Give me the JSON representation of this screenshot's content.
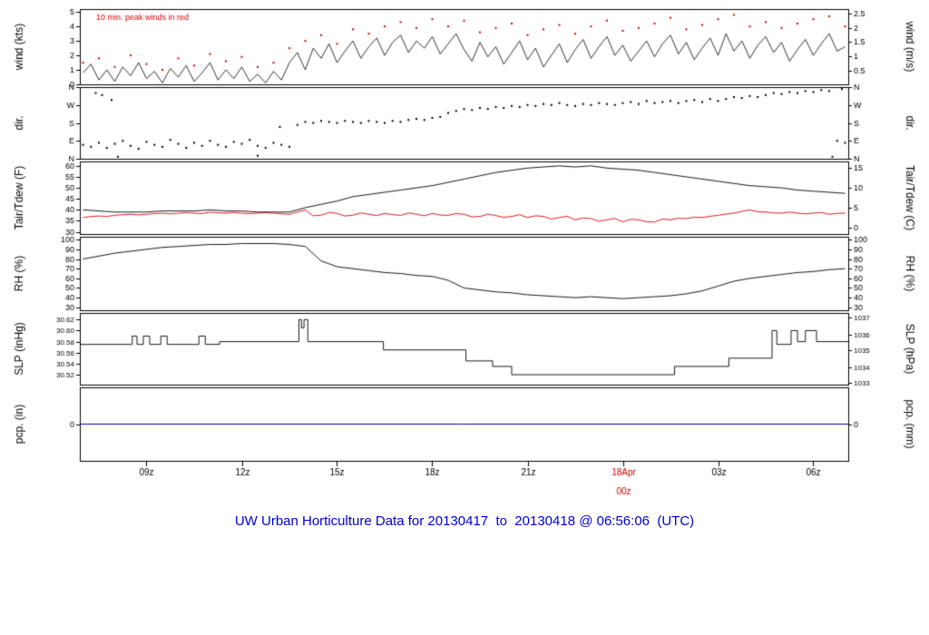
{
  "title": {
    "text": "UW Urban Horticulture Data for 20130417  to  20130418 @ 06:56:06  (UTC)",
    "color": "#0000cc"
  },
  "colors": {
    "accent_blue": "#0000cc",
    "series_red": "#dd0000",
    "series_black": "#000000",
    "precip_blue": "#0000cc"
  },
  "x_axis": {
    "range": [
      6.9,
      31.1
    ],
    "ticks": [
      {
        "t": 9,
        "label": "09z"
      },
      {
        "t": 12,
        "label": "12z"
      },
      {
        "t": 15,
        "label": "15z"
      },
      {
        "t": 18,
        "label": "18z"
      },
      {
        "t": 21,
        "label": "21z"
      },
      {
        "t": 24,
        "label": "18Apr",
        "label2": "00z",
        "color": "#cc0000"
      },
      {
        "t": 27,
        "label": "03z"
      },
      {
        "t": 30,
        "label": "06z"
      }
    ]
  },
  "chart_data": [
    {
      "name": "wind-speed-panel",
      "type": "line",
      "label_left": "wind (kts)",
      "label_right": "wind (m/s)",
      "ylim": [
        0,
        5.2
      ],
      "yticks_left": [
        {
          "v": 0,
          "l": "0"
        },
        {
          "v": 1,
          "l": "1"
        },
        {
          "v": 2,
          "l": "2"
        },
        {
          "v": 3,
          "l": "3"
        },
        {
          "v": 4,
          "l": "4"
        },
        {
          "v": 5,
          "l": "5"
        }
      ],
      "yticks_right": [
        {
          "v": 0.97,
          "l": "0.5"
        },
        {
          "v": 1.94,
          "l": "1"
        },
        {
          "v": 2.92,
          "l": "1.5"
        },
        {
          "v": 3.89,
          "l": "2"
        },
        {
          "v": 4.86,
          "l": "2.5"
        }
      ],
      "annotation": {
        "text": "10 min. peak winds in red",
        "color": "#dd0000"
      },
      "series": [
        {
          "name": "wind-speed",
          "type": "line",
          "color": "#000000",
          "width": 0.8,
          "x_start": 7,
          "x_step": 0.25,
          "y": [
            0.8,
            1.4,
            0.3,
            1.0,
            0.2,
            1.2,
            0.6,
            1.5,
            0.4,
            0.9,
            0.1,
            1.1,
            0.5,
            1.3,
            0.2,
            0.8,
            1.5,
            0.3,
            1.0,
            0.4,
            1.2,
            0.2,
            0.7,
            0.1,
            0.9,
            0.3,
            1.5,
            2.2,
            1.0,
            2.5,
            1.8,
            2.8,
            1.5,
            2.3,
            3.0,
            1.8,
            2.6,
            3.2,
            2.0,
            2.9,
            3.4,
            2.2,
            3.0,
            2.5,
            3.3,
            2.1,
            2.8,
            3.5,
            2.4,
            1.6,
            2.9,
            1.9,
            2.6,
            1.4,
            2.2,
            3.0,
            1.7,
            2.5,
            1.2,
            2.0,
            2.8,
            1.5,
            2.4,
            3.1,
            1.8,
            2.6,
            3.3,
            2.0,
            2.7,
            1.6,
            2.3,
            3.0,
            1.9,
            2.8,
            3.4,
            2.1,
            2.9,
            1.7,
            2.5,
            3.2,
            2.0,
            3.5,
            2.3,
            3.0,
            1.8,
            2.7,
            3.3,
            2.2,
            2.9,
            1.6,
            2.4,
            3.1,
            2.0,
            2.8,
            3.5,
            2.3,
            2.6
          ]
        },
        {
          "name": "peak-wind-10min",
          "type": "dots",
          "color": "#dd0000",
          "x_start": 7,
          "x_step": 0.5,
          "y": [
            1.5,
            1.8,
            1.2,
            2.0,
            1.4,
            1.0,
            1.8,
            1.3,
            2.1,
            1.6,
            1.9,
            1.2,
            1.5,
            2.5,
            3.0,
            3.4,
            2.8,
            3.8,
            3.5,
            4.0,
            4.3,
            3.9,
            4.5,
            4.0,
            4.4,
            3.6,
            3.9,
            4.2,
            3.4,
            3.8,
            4.1,
            3.5,
            4.0,
            4.4,
            3.7,
            3.9,
            4.2,
            4.6,
            3.8,
            4.1,
            4.5,
            4.8,
            4.0,
            4.3,
            3.9,
            4.2,
            4.5,
            4.7,
            4.0
          ]
        }
      ]
    },
    {
      "name": "wind-direction-panel",
      "type": "scatter",
      "label_left": "dir.",
      "label_right": "dir.",
      "ylim": [
        0,
        360
      ],
      "yticks_left": [
        {
          "v": 0,
          "l": "N"
        },
        {
          "v": 90,
          "l": "E"
        },
        {
          "v": 180,
          "l": "S"
        },
        {
          "v": 270,
          "l": "W"
        },
        {
          "v": 360,
          "l": "N"
        }
      ],
      "yticks_right": [
        {
          "v": 0,
          "l": "N"
        },
        {
          "v": 90,
          "l": "E"
        },
        {
          "v": 180,
          "l": "S"
        },
        {
          "v": 270,
          "l": "W"
        },
        {
          "v": 360,
          "l": "N"
        }
      ],
      "series": [
        {
          "name": "wind-direction",
          "type": "dots",
          "color": "#000000",
          "x_start": 7,
          "x_step": 0.25,
          "y": [
            70,
            60,
            80,
            55,
            75,
            90,
            65,
            50,
            85,
            70,
            60,
            95,
            75,
            55,
            80,
            65,
            90,
            70,
            60,
            85,
            75,
            95,
            65,
            55,
            80,
            70,
            60,
            170,
            185,
            180,
            190,
            185,
            180,
            190,
            185,
            180,
            190,
            185,
            180,
            190,
            185,
            195,
            200,
            195,
            205,
            210,
            230,
            240,
            250,
            245,
            255,
            250,
            260,
            255,
            265,
            260,
            270,
            265,
            275,
            270,
            280,
            270,
            265,
            275,
            270,
            280,
            275,
            270,
            280,
            285,
            275,
            290,
            280,
            285,
            290,
            280,
            290,
            295,
            285,
            300,
            290,
            300,
            310,
            305,
            315,
            310,
            320,
            330,
            325,
            335,
            330,
            340,
            335,
            345,
            340,
            90,
            80
          ]
        },
        {
          "name": "wind-direction-extra",
          "type": "dots",
          "color": "#000000",
          "points": [
            [
              7.4,
              330
            ],
            [
              7.6,
              320
            ],
            [
              7.9,
              295
            ],
            [
              8.1,
              10
            ],
            [
              12.5,
              15
            ],
            [
              13.2,
              160
            ],
            [
              30.6,
              10
            ],
            [
              30.9,
              350
            ]
          ]
        }
      ]
    },
    {
      "name": "temperature-panel",
      "type": "line",
      "label_left": "Tair/Tdew (F)",
      "label_right": "Tair/Tdew (C)",
      "ylim": [
        29,
        62
      ],
      "yticks_left": [
        {
          "v": 30,
          "l": "30"
        },
        {
          "v": 35,
          "l": "35"
        },
        {
          "v": 40,
          "l": "40"
        },
        {
          "v": 45,
          "l": "45"
        },
        {
          "v": 50,
          "l": "50"
        },
        {
          "v": 55,
          "l": "55"
        },
        {
          "v": 60,
          "l": "60"
        }
      ],
      "yticks_right": [
        {
          "v": 32,
          "l": "0"
        },
        {
          "v": 41,
          "l": "5"
        },
        {
          "v": 50,
          "l": "10"
        },
        {
          "v": 59,
          "l": "15"
        }
      ],
      "series": [
        {
          "name": "tair",
          "type": "line",
          "color": "#000000",
          "width": 0.9,
          "x_start": 7,
          "x_step": 0.5,
          "y": [
            40,
            39.5,
            39,
            39,
            39,
            39.5,
            39.5,
            39.5,
            40,
            39.5,
            39.5,
            39,
            39,
            39,
            41,
            42.5,
            44,
            46,
            47,
            48,
            49,
            50,
            51,
            52.5,
            54,
            55.5,
            57,
            58,
            59,
            59.5,
            60,
            59.5,
            60,
            59,
            58.5,
            58,
            57,
            56,
            55,
            54,
            53,
            52,
            51,
            50.5,
            50,
            49,
            48.5,
            48,
            47.5
          ]
        },
        {
          "name": "tdew",
          "type": "line",
          "color": "#dd0000",
          "width": 0.9,
          "x_start": 7,
          "x_step": 0.25,
          "y": [
            36.5,
            37,
            37.2,
            37,
            37.5,
            37.8,
            38,
            37.7,
            38,
            38.3,
            38.5,
            38.2,
            38.5,
            38.7,
            38.5,
            38.3,
            39,
            38.6,
            38.5,
            38.8,
            38.5,
            38.3,
            38.5,
            38.7,
            38.5,
            38.2,
            38,
            39,
            40,
            37.3,
            37.6,
            38.8,
            38.4,
            37.2,
            37.6,
            38.6,
            38,
            37.4,
            38.4,
            37.8,
            37.5,
            38.6,
            38,
            37.3,
            38.4,
            37.6,
            37.5,
            38.3,
            38,
            36.8,
            37,
            38,
            37.4,
            36.6,
            37,
            37.8,
            36.5,
            37.3,
            37,
            35.8,
            36.5,
            37.1,
            35.5,
            36.3,
            36,
            34.8,
            35.5,
            36.1,
            34.5,
            35.7,
            35.5,
            34.6,
            34.5,
            35.8,
            35.5,
            36.2,
            36,
            36.7,
            36.5,
            37.1,
            37.5,
            38.1,
            38.5,
            39.3,
            40,
            39.1,
            39,
            38.6,
            38.5,
            39,
            38.5,
            38.2,
            38.5,
            38.8,
            38,
            38.4,
            38.5
          ]
        }
      ]
    },
    {
      "name": "humidity-panel",
      "type": "line",
      "label_left": "RH (%)",
      "label_right": "RH (%)",
      "ylim": [
        27,
        103
      ],
      "yticks_left": [
        {
          "v": 30,
          "l": "30"
        },
        {
          "v": 40,
          "l": "40"
        },
        {
          "v": 50,
          "l": "50"
        },
        {
          "v": 60,
          "l": "60"
        },
        {
          "v": 70,
          "l": "70"
        },
        {
          "v": 80,
          "l": "80"
        },
        {
          "v": 90,
          "l": "90"
        },
        {
          "v": 100,
          "l": "100"
        }
      ],
      "yticks_right": [
        {
          "v": 30,
          "l": "30"
        },
        {
          "v": 40,
          "l": "40"
        },
        {
          "v": 50,
          "l": "50"
        },
        {
          "v": 60,
          "l": "60"
        },
        {
          "v": 70,
          "l": "70"
        },
        {
          "v": 80,
          "l": "80"
        },
        {
          "v": 90,
          "l": "90"
        },
        {
          "v": 100,
          "l": "100"
        }
      ],
      "series": [
        {
          "name": "relative-humidity",
          "type": "line",
          "color": "#000000",
          "width": 0.9,
          "x_start": 7,
          "x_step": 0.5,
          "y": [
            80,
            83,
            86,
            88,
            90,
            92,
            93,
            94,
            95,
            95,
            96,
            96,
            96,
            95,
            93,
            78,
            72,
            70,
            68,
            66,
            65,
            63,
            62,
            58,
            50,
            48,
            46,
            45,
            43,
            42,
            41,
            40,
            41,
            40,
            39,
            40,
            41,
            42,
            44,
            47,
            52,
            57,
            60,
            62,
            64,
            66,
            67,
            69,
            70
          ]
        }
      ]
    },
    {
      "name": "pressure-panel",
      "type": "line",
      "tick_font": 8,
      "label_left": "SLP (inHg)",
      "label_right": "SLP (hPa)",
      "ylim": [
        30.502,
        30.632
      ],
      "yticks_left": [
        {
          "v": 30.52,
          "l": "30.52"
        },
        {
          "v": 30.54,
          "l": "30.54"
        },
        {
          "v": 30.56,
          "l": "30.56"
        },
        {
          "v": 30.58,
          "l": "30.58"
        },
        {
          "v": 30.6,
          "l": "30.60"
        },
        {
          "v": 30.62,
          "l": "30.62"
        }
      ],
      "yticks_right": [
        {
          "v": 30.505,
          "l": "1033"
        },
        {
          "v": 30.534,
          "l": "1034"
        },
        {
          "v": 30.564,
          "l": "1035"
        },
        {
          "v": 30.593,
          "l": "1036"
        },
        {
          "v": 30.623,
          "l": "1037"
        }
      ],
      "series": [
        {
          "name": "sea-level-pressure",
          "type": "line",
          "color": "#000000",
          "width": 0.9,
          "points": [
            [
              6.9,
              30.575
            ],
            [
              8.55,
              30.575
            ],
            [
              8.55,
              30.59
            ],
            [
              8.7,
              30.59
            ],
            [
              8.7,
              30.575
            ],
            [
              8.9,
              30.575
            ],
            [
              8.9,
              30.59
            ],
            [
              9.1,
              30.59
            ],
            [
              9.1,
              30.575
            ],
            [
              9.45,
              30.575
            ],
            [
              9.45,
              30.59
            ],
            [
              9.65,
              30.59
            ],
            [
              9.65,
              30.575
            ],
            [
              10.65,
              30.575
            ],
            [
              10.65,
              30.59
            ],
            [
              10.85,
              30.59
            ],
            [
              10.85,
              30.575
            ],
            [
              11.3,
              30.575
            ],
            [
              11.3,
              30.58
            ],
            [
              13.8,
              30.58
            ],
            [
              13.8,
              30.62
            ],
            [
              13.88,
              30.62
            ],
            [
              13.88,
              30.605
            ],
            [
              13.96,
              30.605
            ],
            [
              13.96,
              30.62
            ],
            [
              14.08,
              30.62
            ],
            [
              14.08,
              30.58
            ],
            [
              16.46,
              30.58
            ],
            [
              16.46,
              30.565
            ],
            [
              19.06,
              30.565
            ],
            [
              19.06,
              30.545
            ],
            [
              19.9,
              30.545
            ],
            [
              19.9,
              30.535
            ],
            [
              20.5,
              30.535
            ],
            [
              20.5,
              30.52
            ],
            [
              25.63,
              30.52
            ],
            [
              25.63,
              30.535
            ],
            [
              27.34,
              30.535
            ],
            [
              27.34,
              30.55
            ],
            [
              28.7,
              30.55
            ],
            [
              28.7,
              30.6
            ],
            [
              28.85,
              30.6
            ],
            [
              28.85,
              30.575
            ],
            [
              29.3,
              30.575
            ],
            [
              29.3,
              30.6
            ],
            [
              29.5,
              30.6
            ],
            [
              29.5,
              30.58
            ],
            [
              29.75,
              30.58
            ],
            [
              29.75,
              30.6
            ],
            [
              30.1,
              30.6
            ],
            [
              30.1,
              30.58
            ],
            [
              31.1,
              30.58
            ]
          ]
        }
      ]
    },
    {
      "name": "precip-panel",
      "type": "line",
      "label_left": "pcp. (in)",
      "label_right": "pcp. (mm)",
      "ylim": [
        -1,
        1
      ],
      "yticks_left": [
        {
          "v": 0,
          "l": "0"
        }
      ],
      "yticks_right": [
        {
          "v": 0,
          "l": "0"
        }
      ],
      "series": [
        {
          "name": "precipitation",
          "type": "line",
          "color": "#0000cc",
          "width": 1,
          "points": [
            [
              6.9,
              0
            ],
            [
              31.1,
              0
            ]
          ]
        }
      ]
    }
  ]
}
